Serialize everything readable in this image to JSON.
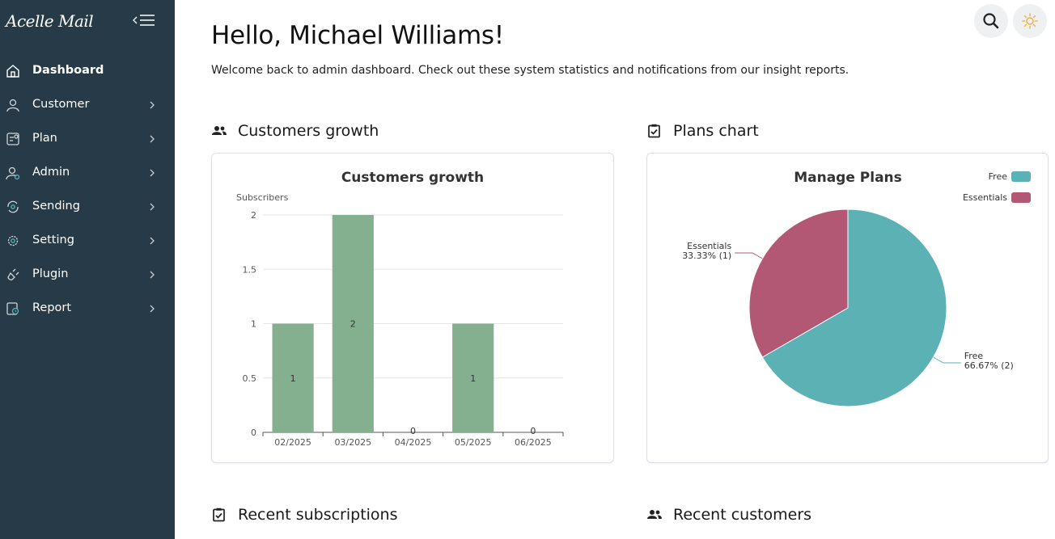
{
  "app": {
    "brand": "Acelle Mail"
  },
  "sidebar": {
    "items": [
      {
        "label": "Dashboard",
        "icon": "home-icon",
        "active": true,
        "has_submenu": false
      },
      {
        "label": "Customer",
        "icon": "user-icon",
        "active": false,
        "has_submenu": true
      },
      {
        "label": "Plan",
        "icon": "plan-icon",
        "active": false,
        "has_submenu": true
      },
      {
        "label": "Admin",
        "icon": "admin-icon",
        "active": false,
        "has_submenu": true
      },
      {
        "label": "Sending",
        "icon": "sending-icon",
        "active": false,
        "has_submenu": true
      },
      {
        "label": "Setting",
        "icon": "gear-icon",
        "active": false,
        "has_submenu": true
      },
      {
        "label": "Plugin",
        "icon": "plug-icon",
        "active": false,
        "has_submenu": true
      },
      {
        "label": "Report",
        "icon": "report-icon",
        "active": false,
        "has_submenu": true
      }
    ]
  },
  "header": {
    "title": "Hello, Michael Williams!",
    "welcome": "Welcome back to admin dashboard. Check out these system statistics and notifications from our insight reports."
  },
  "sections": {
    "customers_growth": "Customers growth",
    "plans_chart": "Plans chart",
    "recent_subscriptions": "Recent subscriptions",
    "recent_customers": "Recent customers"
  },
  "colors": {
    "sidebar_bg": "#263a47",
    "bar_color": "#84b090",
    "pie_free": "#5bb1b4",
    "pie_essentials": "#b25874",
    "sun_icon": "#f0b34a"
  },
  "chart_data": [
    {
      "type": "bar",
      "title": "Customers growth",
      "ylabel": "Subscribers",
      "xlabel": "",
      "categories": [
        "02/2025",
        "03/2025",
        "04/2025",
        "05/2025",
        "06/2025"
      ],
      "values": [
        1,
        2,
        0,
        1,
        0
      ],
      "ylim": [
        0,
        2
      ],
      "yticks": [
        "0",
        "0.5",
        "1",
        "1.5",
        "2"
      ],
      "data_labels": [
        "1",
        "2",
        "0",
        "1",
        "0"
      ],
      "grid": true
    },
    {
      "type": "pie",
      "title": "Manage Plans",
      "legend_position": "top-right",
      "series": [
        {
          "name": "Free",
          "value": 2,
          "label": "66.67% (2)"
        },
        {
          "name": "Essentials",
          "value": 1,
          "label": "33.33% (1)"
        }
      ]
    }
  ]
}
